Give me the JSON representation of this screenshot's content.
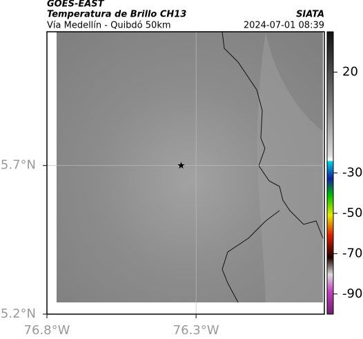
{
  "header": {
    "title": "GOES-EAST",
    "subtitle": "Temperatura de Brillo CH13",
    "source": "SIATA",
    "location": "Vía Medellín - Quibdó 50km",
    "datetime": "2024-07-01 08:39"
  },
  "map": {
    "xlim": [
      -76.8,
      -75.87
    ],
    "ylim": [
      5.2,
      6.15
    ],
    "xticks": [
      {
        "value": -76.8,
        "label": "76.8°W"
      },
      {
        "value": -76.3,
        "label": "76.3°W"
      }
    ],
    "yticks": [
      {
        "value": 5.2,
        "label": "5.2°N"
      },
      {
        "value": 5.7,
        "label": "5.7°N"
      }
    ],
    "marker": {
      "lon": -76.35,
      "lat": 5.7
    }
  },
  "colorbar": {
    "clim": [
      -100,
      40
    ],
    "ticks": [
      20,
      -30,
      -50,
      -70,
      -90
    ]
  }
}
